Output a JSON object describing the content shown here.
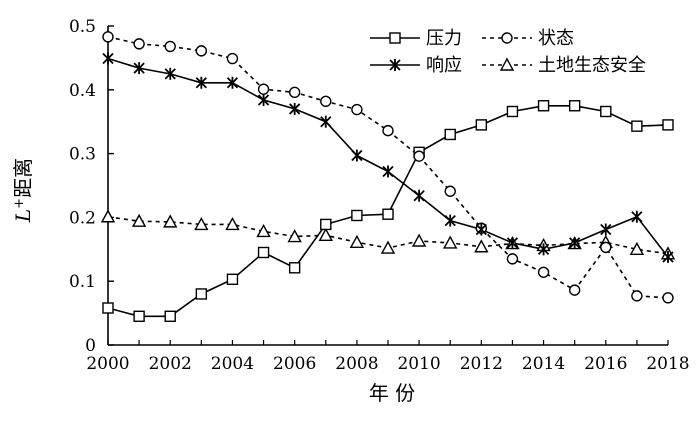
{
  "chart_data": {
    "type": "line",
    "xlabel": "年 份",
    "ylabel_main": "L",
    "ylabel_sup": "+",
    "ylabel_rest": "距离",
    "xlim": [
      2000,
      2018
    ],
    "ylim": [
      0,
      0.5
    ],
    "x_ticks": [
      "2000",
      "2002",
      "2004",
      "2006",
      "2008",
      "2010",
      "2012",
      "2014",
      "2016",
      "2018"
    ],
    "y_ticks": [
      "0",
      "0.1",
      "0.2",
      "0.3",
      "0.4",
      "0.5"
    ],
    "legend_position": "top-right",
    "grid": false,
    "x": [
      2000,
      2001,
      2002,
      2003,
      2004,
      2005,
      2006,
      2007,
      2008,
      2009,
      2010,
      2011,
      2012,
      2013,
      2014,
      2015,
      2016,
      2017,
      2018
    ],
    "series": [
      {
        "name": "压力",
        "marker": "square",
        "line": "solid",
        "values": [
          0.058,
          0.045,
          0.045,
          0.08,
          0.103,
          0.145,
          0.121,
          0.189,
          0.203,
          0.205,
          0.302,
          0.33,
          0.345,
          0.366,
          0.375,
          0.375,
          0.366,
          0.343,
          0.345
        ]
      },
      {
        "name": "状态",
        "marker": "circle",
        "line": "dashed",
        "values": [
          0.483,
          0.472,
          0.468,
          0.461,
          0.449,
          0.401,
          0.396,
          0.382,
          0.369,
          0.336,
          0.296,
          0.241,
          0.183,
          0.135,
          0.114,
          0.086,
          0.153,
          0.077,
          0.074
        ]
      },
      {
        "name": "响应",
        "marker": "x",
        "line": "solid",
        "values": [
          0.449,
          0.434,
          0.425,
          0.411,
          0.411,
          0.384,
          0.37,
          0.35,
          0.297,
          0.272,
          0.234,
          0.195,
          0.181,
          0.16,
          0.15,
          0.16,
          0.181,
          0.201,
          0.138
        ]
      },
      {
        "name": "土地生态安全",
        "marker": "triangle",
        "line": "dashed",
        "values": [
          0.201,
          0.194,
          0.193,
          0.189,
          0.189,
          0.178,
          0.17,
          0.172,
          0.161,
          0.152,
          0.163,
          0.16,
          0.154,
          0.159,
          0.156,
          0.159,
          0.161,
          0.15,
          0.143
        ]
      }
    ],
    "legend_rows": [
      [
        "压力",
        "状态"
      ],
      [
        "响应",
        "土地生态安全"
      ]
    ]
  }
}
